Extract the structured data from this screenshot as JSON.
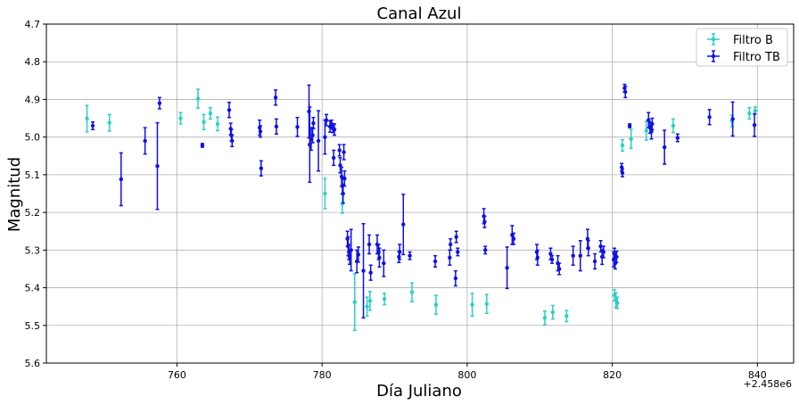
{
  "chart_data": {
    "type": "scatter",
    "title": "Canal Azul",
    "xlabel": "Día Juliano",
    "ylabel": "Magnitud",
    "x_offset_label": "+2.458e6",
    "x_ticks": [
      760,
      780,
      800,
      820,
      840
    ],
    "y_ticks": [
      "4.7",
      "4.8",
      "4.9",
      "5.0",
      "5.1",
      "5.2",
      "5.3",
      "5.4",
      "5.5",
      "5.6"
    ],
    "xlim": [
      742,
      845
    ],
    "ylim": [
      5.6,
      4.7
    ],
    "y_inverted": true,
    "grid": true,
    "legend_position": "top-right",
    "series": [
      {
        "name": "Filtro B",
        "color": "#2ad0c4",
        "points": [
          [
            747.6,
            4.951,
            0.035
          ],
          [
            750.7,
            4.962,
            0.022
          ],
          [
            760.5,
            4.95,
            0.015
          ],
          [
            762.9,
            4.898,
            0.025
          ],
          [
            763.7,
            4.96,
            0.02
          ],
          [
            764.6,
            4.937,
            0.015
          ],
          [
            765.6,
            4.965,
            0.018
          ],
          [
            780.4,
            5.15,
            0.04
          ],
          [
            782.8,
            5.177,
            0.025
          ],
          [
            784.5,
            5.438,
            0.075
          ],
          [
            786.2,
            5.45,
            0.025
          ],
          [
            786.6,
            5.435,
            0.025
          ],
          [
            788.6,
            5.43,
            0.015
          ],
          [
            792.4,
            5.412,
            0.025
          ],
          [
            795.7,
            5.445,
            0.025
          ],
          [
            800.7,
            5.445,
            0.03
          ],
          [
            802.7,
            5.443,
            0.025
          ],
          [
            810.7,
            5.48,
            0.018
          ],
          [
            811.8,
            5.465,
            0.018
          ],
          [
            813.7,
            5.475,
            0.015
          ],
          [
            820.3,
            5.42,
            0.015
          ],
          [
            820.5,
            5.433,
            0.02
          ],
          [
            820.7,
            5.44,
            0.015
          ],
          [
            821.4,
            5.022,
            0.015
          ],
          [
            822.6,
            5.005,
            0.025
          ],
          [
            824.7,
            4.983,
            0.025
          ],
          [
            828.4,
            4.97,
            0.018
          ],
          [
            836.5,
            4.957,
            0.015
          ],
          [
            838.9,
            4.937,
            0.015
          ],
          [
            839.7,
            4.93,
            0.01
          ]
        ]
      },
      {
        "name": "Filtro TB",
        "color": "#1010e6",
        "points": [
          [
            748.4,
            4.97,
            0.01
          ],
          [
            752.3,
            5.112,
            0.07
          ],
          [
            755.6,
            5.01,
            0.035
          ],
          [
            757.3,
            5.077,
            0.115
          ],
          [
            757.6,
            4.91,
            0.015
          ],
          [
            763.5,
            5.022,
            0.005
          ],
          [
            767.2,
            4.928,
            0.02
          ],
          [
            767.4,
            4.978,
            0.015
          ],
          [
            767.5,
            4.995,
            0.015
          ],
          [
            767.6,
            5.01,
            0.015
          ],
          [
            771.4,
            4.975,
            0.02
          ],
          [
            771.5,
            4.985,
            0.015
          ],
          [
            771.6,
            5.083,
            0.02
          ],
          [
            773.6,
            4.895,
            0.02
          ],
          [
            773.7,
            4.972,
            0.02
          ],
          [
            776.6,
            4.973,
            0.025
          ],
          [
            778.2,
            4.932,
            0.07
          ],
          [
            778.3,
            5.02,
            0.1
          ],
          [
            778.5,
            5.005,
            0.03
          ],
          [
            778.7,
            4.995,
            0.02
          ],
          [
            778.8,
            4.963,
            0.015
          ],
          [
            779.5,
            5.01,
            0.08
          ],
          [
            780.4,
            5.0,
            0.045
          ],
          [
            780.6,
            4.955,
            0.015
          ],
          [
            781.1,
            4.972,
            0.015
          ],
          [
            781.3,
            4.965,
            0.01
          ],
          [
            781.5,
            4.978,
            0.01
          ],
          [
            781.6,
            5.055,
            0.02
          ],
          [
            781.7,
            4.98,
            0.015
          ],
          [
            782.4,
            5.035,
            0.015
          ],
          [
            782.5,
            5.075,
            0.02
          ],
          [
            782.7,
            5.105,
            0.025
          ],
          [
            782.8,
            5.13,
            0.02
          ],
          [
            782.9,
            5.15,
            0.025
          ],
          [
            783.0,
            5.04,
            0.02
          ],
          [
            783.1,
            5.11,
            0.02
          ],
          [
            783.5,
            5.27,
            0.02
          ],
          [
            783.6,
            5.29,
            0.025
          ],
          [
            783.7,
            5.305,
            0.02
          ],
          [
            783.8,
            5.318,
            0.02
          ],
          [
            784.0,
            5.3,
            0.055
          ],
          [
            784.8,
            5.33,
            0.03
          ],
          [
            785.0,
            5.312,
            0.02
          ],
          [
            785.7,
            5.355,
            0.125
          ],
          [
            786.5,
            5.285,
            0.025
          ],
          [
            786.7,
            5.36,
            0.02
          ],
          [
            787.6,
            5.285,
            0.025
          ],
          [
            787.8,
            5.305,
            0.02
          ],
          [
            787.9,
            5.32,
            0.025
          ],
          [
            788.5,
            5.335,
            0.035
          ],
          [
            790.6,
            5.318,
            0.015
          ],
          [
            790.7,
            5.305,
            0.02
          ],
          [
            791.2,
            5.232,
            0.08
          ],
          [
            792.1,
            5.315,
            0.01
          ],
          [
            795.6,
            5.33,
            0.015
          ],
          [
            797.6,
            5.32,
            0.02
          ],
          [
            797.7,
            5.285,
            0.015
          ],
          [
            798.4,
            5.375,
            0.02
          ],
          [
            798.5,
            5.265,
            0.015
          ],
          [
            798.7,
            5.305,
            0.01
          ],
          [
            802.3,
            5.21,
            0.02
          ],
          [
            802.4,
            5.225,
            0.015
          ],
          [
            802.5,
            5.3,
            0.01
          ],
          [
            805.5,
            5.347,
            0.055
          ],
          [
            806.2,
            5.26,
            0.025
          ],
          [
            806.4,
            5.27,
            0.015
          ],
          [
            809.6,
            5.305,
            0.02
          ],
          [
            809.7,
            5.32,
            0.02
          ],
          [
            811.5,
            5.31,
            0.015
          ],
          [
            811.7,
            5.325,
            0.01
          ],
          [
            812.5,
            5.335,
            0.02
          ],
          [
            812.7,
            5.35,
            0.015
          ],
          [
            814.6,
            5.315,
            0.025
          ],
          [
            815.6,
            5.315,
            0.04
          ],
          [
            816.6,
            5.27,
            0.025
          ],
          [
            816.7,
            5.295,
            0.02
          ],
          [
            817.6,
            5.33,
            0.02
          ],
          [
            818.4,
            5.29,
            0.015
          ],
          [
            818.6,
            5.318,
            0.02
          ],
          [
            818.8,
            5.305,
            0.015
          ],
          [
            820.2,
            5.325,
            0.02
          ],
          [
            820.3,
            5.31,
            0.015
          ],
          [
            820.4,
            5.335,
            0.015
          ],
          [
            820.6,
            5.318,
            0.015
          ],
          [
            821.3,
            5.08,
            0.01
          ],
          [
            821.4,
            5.095,
            0.01
          ],
          [
            821.7,
            4.87,
            0.01
          ],
          [
            821.8,
            4.88,
            0.015
          ],
          [
            822.4,
            4.97,
            0.005
          ],
          [
            825.0,
            4.955,
            0.02
          ],
          [
            825.2,
            4.975,
            0.015
          ],
          [
            825.4,
            4.985,
            0.02
          ],
          [
            825.5,
            4.965,
            0.015
          ],
          [
            827.2,
            5.027,
            0.045
          ],
          [
            829.0,
            5.002,
            0.01
          ],
          [
            833.4,
            4.947,
            0.02
          ],
          [
            836.6,
            4.952,
            0.045
          ],
          [
            839.6,
            4.968,
            0.03
          ]
        ]
      }
    ]
  }
}
